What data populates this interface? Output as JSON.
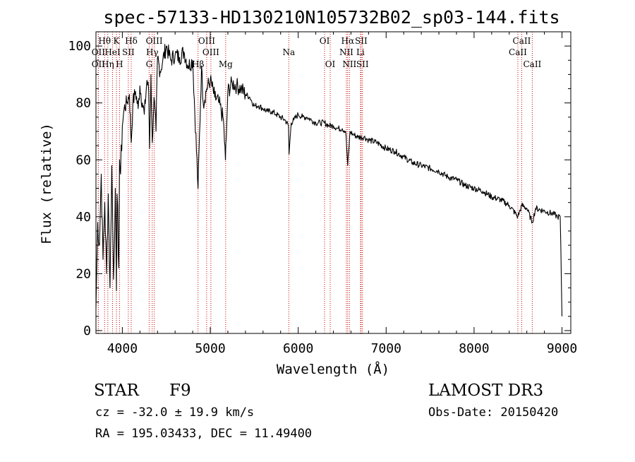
{
  "chart_data": {
    "type": "line",
    "title": "spec-57133-HD130210N105732B02_sp03-144.fits",
    "xlabel": "Wavelength (Å)",
    "ylabel": "Flux (relative)",
    "xlim": [
      3700,
      9100
    ],
    "ylim": [
      -1,
      105
    ],
    "xticks": [
      4000,
      5000,
      6000,
      7000,
      8000,
      9000
    ],
    "yticks": [
      0,
      20,
      40,
      60,
      80,
      100
    ],
    "grid": false,
    "series": [
      {
        "name": "flux",
        "x": [
          3700,
          3720,
          3740,
          3760,
          3780,
          3800,
          3820,
          3840,
          3860,
          3880,
          3900,
          3920,
          3933,
          3940,
          3960,
          3968,
          3980,
          4000,
          4020,
          4050,
          4080,
          4101,
          4120,
          4150,
          4180,
          4200,
          4227,
          4250,
          4280,
          4300,
          4310,
          4325,
          4340,
          4360,
          4383,
          4400,
          4430,
          4460,
          4500,
          4550,
          4600,
          4650,
          4700,
          4750,
          4800,
          4861,
          4900,
          4920,
          4960,
          5000,
          5050,
          5100,
          5150,
          5172,
          5183,
          5200,
          5250,
          5300,
          5350,
          5400,
          5450,
          5500,
          5550,
          5600,
          5650,
          5700,
          5750,
          5800,
          5850,
          5890,
          5896,
          5920,
          5950,
          6000,
          6050,
          6100,
          6150,
          6200,
          6250,
          6300,
          6350,
          6400,
          6450,
          6500,
          6540,
          6563,
          6590,
          6620,
          6680,
          6750,
          6800,
          6900,
          7000,
          7100,
          7200,
          7300,
          7400,
          7500,
          7600,
          7700,
          7800,
          7900,
          8000,
          8100,
          8200,
          8300,
          8400,
          8498,
          8542,
          8600,
          8662,
          8700,
          8800,
          8900,
          8950,
          8980,
          9000
        ],
        "values": [
          8,
          38,
          30,
          55,
          25,
          45,
          20,
          48,
          15,
          58,
          18,
          50,
          14,
          48,
          22,
          60,
          55,
          72,
          78,
          80,
          83,
          66,
          80,
          84,
          78,
          86,
          80,
          76,
          88,
          84,
          64,
          90,
          66,
          82,
          70,
          96,
          91,
          95,
          100,
          95,
          97,
          96,
          98,
          93,
          95,
          50,
          93,
          80,
          85,
          88,
          82,
          80,
          74,
          60,
          68,
          84,
          87,
          86,
          85,
          83,
          82,
          79,
          79,
          78,
          77,
          77,
          76,
          75,
          74,
          72,
          62,
          73,
          74,
          76,
          75,
          75,
          74,
          73,
          73,
          73,
          72,
          72,
          71,
          71,
          70,
          58,
          70,
          69,
          68,
          68,
          67,
          66,
          64,
          63,
          61,
          59,
          58,
          57,
          56,
          54,
          53,
          51,
          50,
          49,
          47,
          46,
          44,
          40,
          44,
          43,
          38,
          43,
          42,
          41,
          40,
          40,
          5
        ]
      }
    ],
    "spectral_lines": [
      {
        "label": "Hθ",
        "wavelength": 3798,
        "row": 1
      },
      {
        "label": "OII",
        "wavelength": 3727,
        "row": 2
      },
      {
        "label": "OII",
        "wavelength": 3727,
        "row": 3
      },
      {
        "label": "K",
        "wavelength": 3933,
        "row": 1
      },
      {
        "label": "HeI",
        "wavelength": 3889,
        "row": 2
      },
      {
        "label": "Hη",
        "wavelength": 3835,
        "row": 3
      },
      {
        "label": "Hδ",
        "wavelength": 4101,
        "row": 1
      },
      {
        "label": "SII",
        "wavelength": 4068,
        "row": 2
      },
      {
        "label": "H",
        "wavelength": 3968,
        "row": 3
      },
      {
        "label": "OIII",
        "wavelength": 4363,
        "row": 1
      },
      {
        "label": "Hγ",
        "wavelength": 4340,
        "row": 2
      },
      {
        "label": "G",
        "wavelength": 4305,
        "row": 3
      },
      {
        "label": "OIII",
        "wavelength": 4959,
        "row": 1
      },
      {
        "label": "OIII",
        "wavelength": 5007,
        "row": 2
      },
      {
        "label": "Hβ",
        "wavelength": 4861,
        "row": 3
      },
      {
        "label": "Mg",
        "wavelength": 5175,
        "row": 3
      },
      {
        "label": "Na",
        "wavelength": 5893,
        "row": 2
      },
      {
        "label": "OI",
        "wavelength": 6300,
        "row": 1
      },
      {
        "label": "OI",
        "wavelength": 6364,
        "row": 3
      },
      {
        "label": "Hα",
        "wavelength": 6563,
        "row": 1
      },
      {
        "label": "NII",
        "wavelength": 6548,
        "row": 2
      },
      {
        "label": "NII",
        "wavelength": 6583,
        "row": 3
      },
      {
        "label": "SII",
        "wavelength": 6716,
        "row": 1
      },
      {
        "label": "Li",
        "wavelength": 6708,
        "row": 2
      },
      {
        "label": "SII",
        "wavelength": 6731,
        "row": 3
      },
      {
        "label": "CaII",
        "wavelength": 8542,
        "row": 1
      },
      {
        "label": "CaII",
        "wavelength": 8498,
        "row": 2
      },
      {
        "label": "CaII",
        "wavelength": 8662,
        "row": 3
      }
    ],
    "line_color": "#000000",
    "marker_color": "#cc0000"
  },
  "info": {
    "object_class": "STAR",
    "subclass": "F9",
    "survey": "LAMOST DR3",
    "redshift": "cz = -32.0 ± 19.9 km/s",
    "obs_date": "Obs-Date: 20150420",
    "coords": "RA = 195.03433, DEC =  11.49400"
  }
}
